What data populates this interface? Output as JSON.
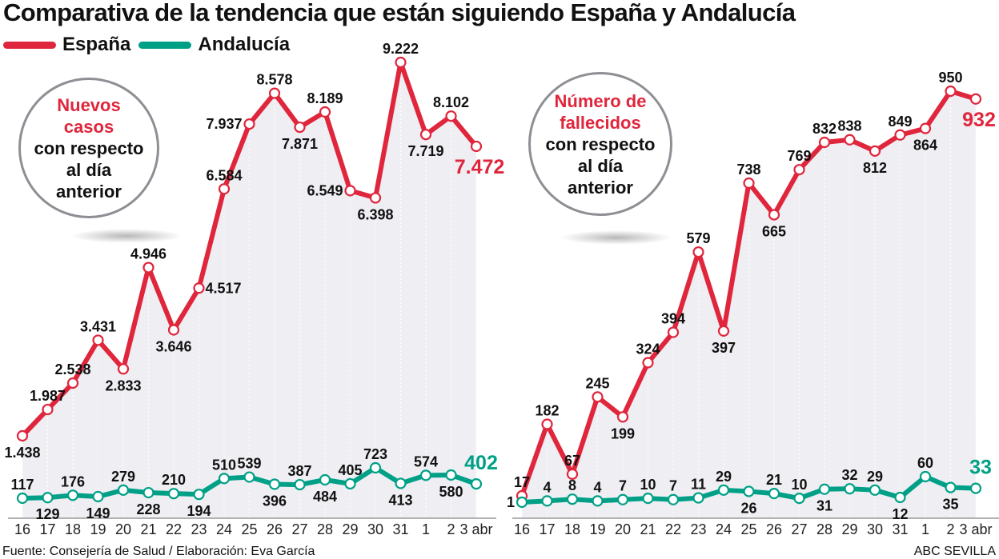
{
  "title": "Comparativa de la tendencia que están siguiendo España y Andalucía",
  "legend": [
    {
      "label": "España",
      "color": "#e0263c"
    },
    {
      "label": "Andalucía",
      "color": "#00a087"
    }
  ],
  "source": "Fuente: Consejería de Salud / Elaboración: Eva García",
  "credit": "ABC SEVILLA",
  "colors": {
    "espana": "#e0263c",
    "andalucia": "#00a087",
    "area": "#eeeef3",
    "axis": "#9a9a9a"
  },
  "chart_data": [
    {
      "type": "line",
      "title": "Nuevos casos con respecto al día anterior",
      "badge": {
        "highlight_lines": [
          "Nuevos",
          "casos"
        ],
        "normal_lines": [
          "con respecto",
          "al día",
          "anterior"
        ]
      },
      "categories": [
        "16",
        "17",
        "18",
        "19",
        "20",
        "21",
        "22",
        "23",
        "24",
        "25",
        "26",
        "27",
        "28",
        "29",
        "30",
        "31",
        "1",
        "2",
        "3 abr"
      ],
      "series": [
        {
          "name": "España",
          "values": [
            1438,
            1987,
            2538,
            3431,
            2833,
            4946,
            3646,
            4517,
            6584,
            7937,
            8578,
            7871,
            8189,
            6549,
            6398,
            9222,
            7719,
            8102,
            7472
          ],
          "labels": [
            "1.438",
            "1.987",
            "2.538",
            "3.431",
            "2.833",
            "4.946",
            "3.646",
            "4.517",
            "6.584",
            "7.937",
            "8.578",
            "7.871",
            "8.189",
            "6.549",
            "6.398",
            "9.222",
            "7.719",
            "8.102",
            "7.472"
          ]
        },
        {
          "name": "Andalucía",
          "values": [
            117,
            129,
            176,
            149,
            279,
            228,
            210,
            194,
            510,
            539,
            396,
            387,
            484,
            405,
            723,
            413,
            574,
            580,
            402
          ],
          "labels": [
            "117",
            "129",
            "176",
            "149",
            "279",
            "228",
            "210",
            "194",
            "510",
            "539",
            "396",
            "387",
            "484",
            "405",
            "723",
            "413",
            "574",
            "580",
            "402"
          ]
        }
      ],
      "xlabel": "",
      "ylabel": "",
      "ylim": [
        0,
        9500
      ],
      "grid": "vertical-dotted",
      "legend_position": "top-left"
    },
    {
      "type": "line",
      "title": "Número de fallecidos con respecto al día anterior",
      "badge": {
        "highlight_lines": [
          "Número de",
          "fallecidos"
        ],
        "normal_lines": [
          "con respecto",
          "al día",
          "anterior"
        ]
      },
      "categories": [
        "16",
        "17",
        "18",
        "19",
        "20",
        "21",
        "22",
        "23",
        "24",
        "25",
        "26",
        "27",
        "28",
        "29",
        "30",
        "31",
        "1",
        "2",
        "3 abr"
      ],
      "series": [
        {
          "name": "España",
          "values": [
            17,
            182,
            67,
            245,
            199,
            324,
            394,
            579,
            397,
            738,
            665,
            769,
            832,
            838,
            812,
            849,
            864,
            950,
            932
          ],
          "labels": [
            "17",
            "182",
            "67",
            "245",
            "199",
            "324",
            "394",
            "579",
            "397",
            "738",
            "665",
            "769",
            "832",
            "838",
            "812",
            "849",
            "864",
            "950",
            "932"
          ]
        },
        {
          "name": "Andalucía",
          "values": [
            1,
            4,
            8,
            4,
            7,
            10,
            7,
            11,
            29,
            26,
            21,
            10,
            31,
            32,
            29,
            12,
            60,
            35,
            33
          ],
          "labels": [
            "1",
            "4",
            "8",
            "4",
            "7",
            "10",
            "7",
            "11",
            "29",
            "26",
            "21",
            "10",
            "31",
            "32",
            "29",
            "12",
            "60",
            "35",
            "33"
          ]
        }
      ],
      "xlabel": "",
      "ylabel": "",
      "ylim": [
        0,
        980
      ],
      "grid": "vertical-dotted",
      "legend_position": "top-left"
    }
  ]
}
